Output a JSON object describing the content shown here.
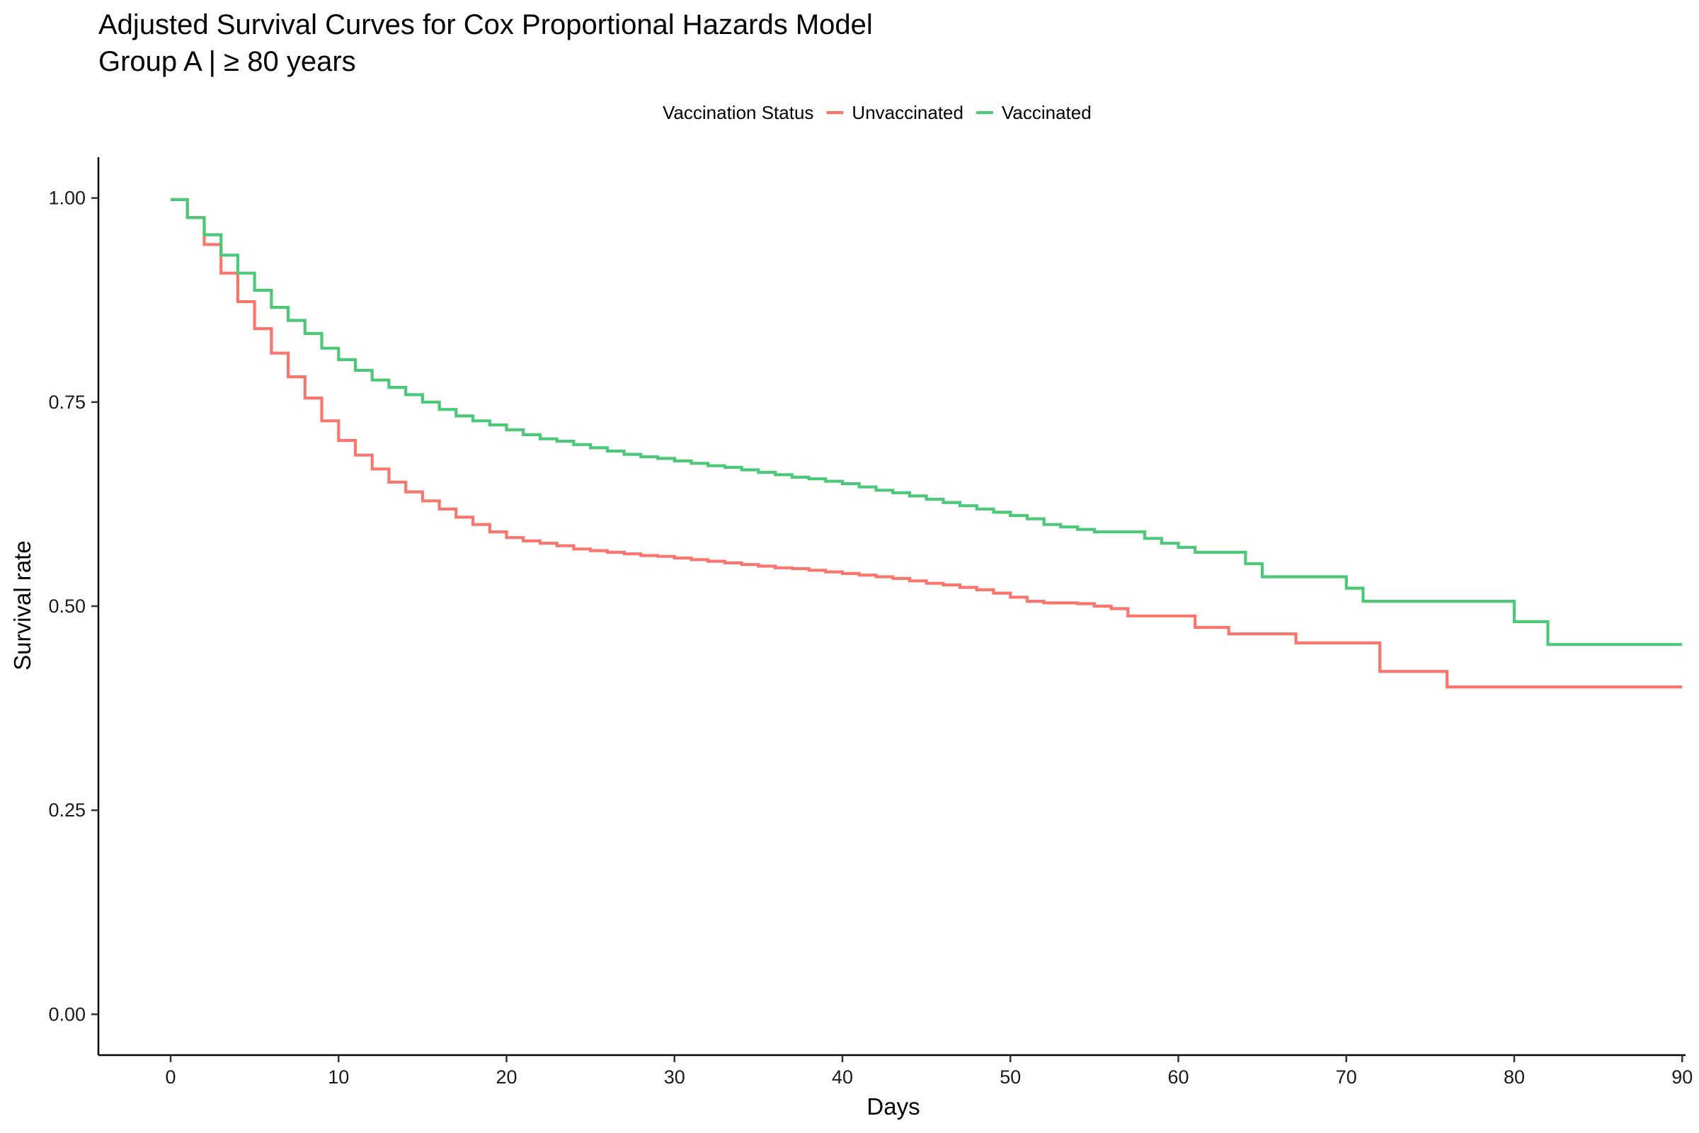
{
  "chart_data": {
    "type": "line",
    "title": "Adjusted Survival Curves for Cox Proportional Hazards Model",
    "subtitle": "Group A | ≥ 80 years",
    "xlabel": "Days",
    "ylabel": "Survival rate",
    "xlim": [
      -4.3,
      90.2
    ],
    "ylim": [
      -0.05,
      1.05
    ],
    "x_ticks": [
      0,
      10,
      20,
      30,
      40,
      50,
      60,
      70,
      80,
      90
    ],
    "x_tick_labels": [
      "0",
      "10",
      "20",
      "30",
      "40",
      "50",
      "60",
      "70",
      "80",
      "90"
    ],
    "y_ticks": [
      0,
      0.25,
      0.5,
      0.75,
      1.0
    ],
    "y_tick_labels": [
      "0.00",
      "0.25",
      "0.50",
      "0.75",
      "1.00"
    ],
    "grid": false,
    "legend": {
      "title": "Vaccination Status",
      "position": "top"
    },
    "step": true,
    "series": [
      {
        "name": "Unvaccinated",
        "color": "#F8766D",
        "x": [
          0,
          1,
          2,
          3,
          4,
          5,
          6,
          7,
          8,
          9,
          10,
          11,
          12,
          13,
          14,
          15,
          16,
          17,
          18,
          19,
          20,
          21,
          22,
          23,
          24,
          25,
          26,
          27,
          28,
          29,
          30,
          31,
          32,
          33,
          34,
          35,
          36,
          37,
          38,
          39,
          40,
          41,
          42,
          43,
          44,
          45,
          46,
          47,
          48,
          49,
          50,
          51,
          52,
          53,
          54,
          55,
          56,
          57,
          58,
          59,
          60,
          61,
          62,
          63,
          64,
          65,
          66,
          67,
          68,
          69,
          70,
          71,
          72,
          76,
          90
        ],
        "y": [
          0.998,
          0.976,
          0.943,
          0.908,
          0.873,
          0.84,
          0.81,
          0.781,
          0.755,
          0.727,
          0.703,
          0.685,
          0.668,
          0.652,
          0.64,
          0.629,
          0.619,
          0.609,
          0.6,
          0.591,
          0.584,
          0.58,
          0.577,
          0.574,
          0.57,
          0.568,
          0.566,
          0.564,
          0.562,
          0.561,
          0.559,
          0.557,
          0.555,
          0.553,
          0.551,
          0.549,
          0.547,
          0.546,
          0.544,
          0.542,
          0.54,
          0.538,
          0.536,
          0.534,
          0.531,
          0.528,
          0.526,
          0.523,
          0.52,
          0.516,
          0.511,
          0.506,
          0.504,
          0.504,
          0.503,
          0.5,
          0.497,
          0.488,
          0.488,
          0.488,
          0.488,
          0.474,
          0.474,
          0.466,
          0.466,
          0.466,
          0.466,
          0.455,
          0.455,
          0.455,
          0.455,
          0.455,
          0.42,
          0.401,
          0.401
        ]
      },
      {
        "name": "Vaccinated",
        "color": "#4DC878",
        "x": [
          0,
          1,
          2,
          3,
          4,
          5,
          6,
          7,
          8,
          9,
          10,
          11,
          12,
          13,
          14,
          15,
          16,
          17,
          18,
          19,
          20,
          21,
          22,
          23,
          24,
          25,
          26,
          27,
          28,
          29,
          30,
          31,
          32,
          33,
          34,
          35,
          36,
          37,
          38,
          39,
          40,
          41,
          42,
          43,
          44,
          45,
          46,
          47,
          48,
          49,
          50,
          51,
          52,
          53,
          54,
          55,
          56,
          57,
          58,
          59,
          60,
          61,
          62,
          63,
          64,
          65,
          66,
          67,
          68,
          69,
          70,
          71,
          72,
          80,
          82,
          90
        ],
        "y": [
          0.998,
          0.976,
          0.955,
          0.93,
          0.908,
          0.887,
          0.866,
          0.85,
          0.834,
          0.816,
          0.802,
          0.789,
          0.777,
          0.768,
          0.759,
          0.75,
          0.741,
          0.733,
          0.727,
          0.722,
          0.716,
          0.71,
          0.705,
          0.702,
          0.698,
          0.694,
          0.69,
          0.686,
          0.683,
          0.681,
          0.678,
          0.675,
          0.672,
          0.67,
          0.667,
          0.664,
          0.661,
          0.658,
          0.656,
          0.653,
          0.65,
          0.646,
          0.642,
          0.639,
          0.635,
          0.631,
          0.627,
          0.623,
          0.619,
          0.615,
          0.611,
          0.607,
          0.6,
          0.597,
          0.594,
          0.591,
          0.591,
          0.591,
          0.583,
          0.577,
          0.572,
          0.566,
          0.566,
          0.566,
          0.552,
          0.536,
          0.536,
          0.536,
          0.536,
          0.536,
          0.522,
          0.506,
          0.506,
          0.481,
          0.453,
          0.453
        ]
      }
    ]
  }
}
